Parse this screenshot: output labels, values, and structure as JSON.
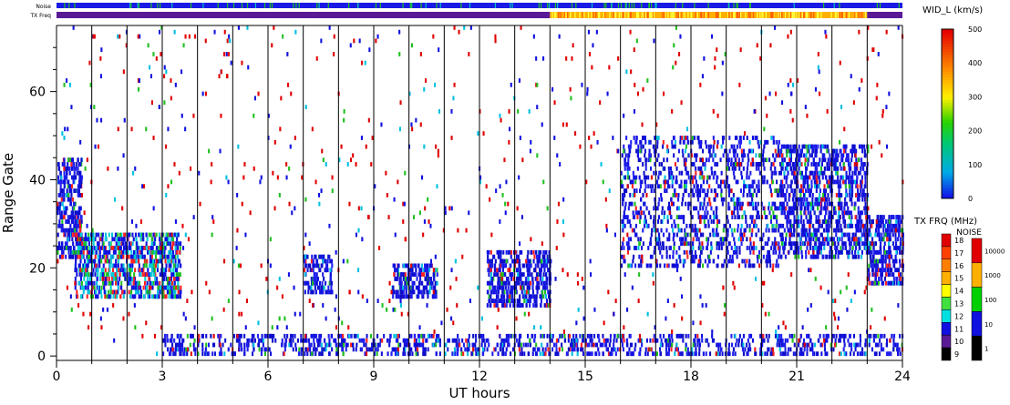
{
  "chart_data": {
    "type": "heatmap",
    "xlabel": "UT hours",
    "ylabel": "Range Gate",
    "xlim": [
      0,
      24
    ],
    "ylim": [
      -1,
      75
    ],
    "x_ticks": [
      "0",
      "3",
      "6",
      "9",
      "12",
      "15",
      "18",
      "21",
      "24"
    ],
    "y_ticks": [
      "0",
      "20",
      "40",
      "60"
    ],
    "hour_lines": [
      1,
      2,
      3,
      4,
      5,
      6,
      7,
      8,
      9,
      10,
      11,
      12,
      13,
      14,
      15,
      16,
      17,
      18,
      19,
      20,
      21,
      22,
      23
    ],
    "top_bars": {
      "noise_label": "Noise",
      "txfreq_label": "TX Freq",
      "txfreq_segments": [
        {
          "start": 0,
          "end": 14.0,
          "level": "10-11 MHz",
          "color": "#5a1a96"
        },
        {
          "start": 14.0,
          "end": 23.0,
          "level": "14-15 MHz",
          "color": "#ffb000"
        },
        {
          "start": 23.0,
          "end": 24.0,
          "level": "10-11 MHz",
          "color": "#5a1a96"
        }
      ]
    },
    "width_colorbar": {
      "title": "WID_L (km/s)",
      "ticks": [
        "500",
        "400",
        "300",
        "200",
        "100",
        "0"
      ],
      "range": [
        0,
        500
      ]
    },
    "txfreq_colorbar": {
      "title": "TX FRQ (MHz)",
      "labels": [
        "18",
        "17",
        "16",
        "15",
        "14",
        "13",
        "12",
        "11",
        "10",
        "9"
      ],
      "colors": [
        "#e00000",
        "#ff4000",
        "#ff8000",
        "#ffb000",
        "#ffff00",
        "#40e040",
        "#00e0e0",
        "#1010e0",
        "#5a1a96",
        "#000000"
      ]
    },
    "noise_colorbar": {
      "title": "NOISE",
      "labels": [
        "10000",
        "1000",
        "100",
        "10",
        "1"
      ],
      "colors": [
        "#e00000",
        "#ffb000",
        "#00d000",
        "#1010e0",
        "#000000"
      ]
    },
    "echo_regions": [
      {
        "t0": 0.0,
        "t1": 0.7,
        "g0": 22,
        "g1": 45,
        "dominant": "blue"
      },
      {
        "t0": 0.5,
        "t1": 3.5,
        "g0": 13,
        "g1": 28,
        "dominant": "blue-cyan"
      },
      {
        "t0": 7.0,
        "t1": 7.8,
        "g0": 14,
        "g1": 23,
        "dominant": "blue"
      },
      {
        "t0": 9.5,
        "t1": 10.8,
        "g0": 13,
        "g1": 21,
        "dominant": "blue"
      },
      {
        "t0": 12.2,
        "t1": 14.0,
        "g0": 11,
        "g1": 24,
        "dominant": "blue"
      },
      {
        "t0": 16.0,
        "t1": 20.5,
        "g0": 20,
        "g1": 50,
        "dominant": "blue"
      },
      {
        "t0": 20.5,
        "t1": 23.0,
        "g0": 22,
        "g1": 48,
        "dominant": "blue"
      },
      {
        "t0": 23.0,
        "t1": 24.0,
        "g0": 16,
        "g1": 32,
        "dominant": "blue"
      },
      {
        "t0": 3.0,
        "t1": 24.0,
        "g0": 0,
        "g1": 5,
        "dominant": "blue"
      }
    ]
  }
}
